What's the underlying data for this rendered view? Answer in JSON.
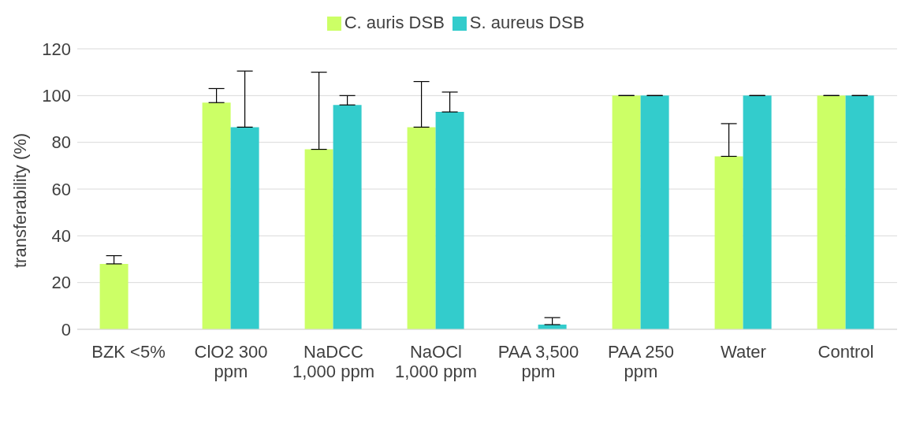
{
  "chart_data": {
    "type": "bar",
    "ylabel": "transferability (%)",
    "categories": [
      "BZK <5%",
      "ClO2 300 ppm",
      "NaDCC 1,000 ppm",
      "NaOCl 1,000 ppm",
      "PAA 3,500 ppm",
      "PAA 250 ppm",
      "Water",
      "Control"
    ],
    "series": [
      {
        "name": "C. auris DSB",
        "color": "#ccff66",
        "values": [
          28,
          97,
          77,
          86.5,
          0,
          100,
          74,
          100
        ],
        "errors": [
          [
            28,
            31.5
          ],
          [
            97,
            103
          ],
          [
            77,
            110
          ],
          [
            86.5,
            106
          ],
          null,
          [
            100,
            100
          ],
          [
            74,
            88
          ],
          [
            100,
            100
          ]
        ]
      },
      {
        "name": "S. aureus DSB",
        "color": "#33cccc",
        "values": [
          0,
          86.5,
          96,
          93,
          2,
          100,
          100,
          100
        ],
        "errors": [
          null,
          [
            86.5,
            110.5
          ],
          [
            96,
            100
          ],
          [
            93,
            101.5
          ],
          [
            2,
            5
          ],
          [
            100,
            100
          ],
          [
            100,
            100
          ],
          [
            100,
            100
          ]
        ]
      }
    ],
    "ylim": [
      0,
      120
    ],
    "yticks": [
      0,
      20,
      40,
      60,
      80,
      100,
      120
    ],
    "grid": "y",
    "legend": "top"
  }
}
